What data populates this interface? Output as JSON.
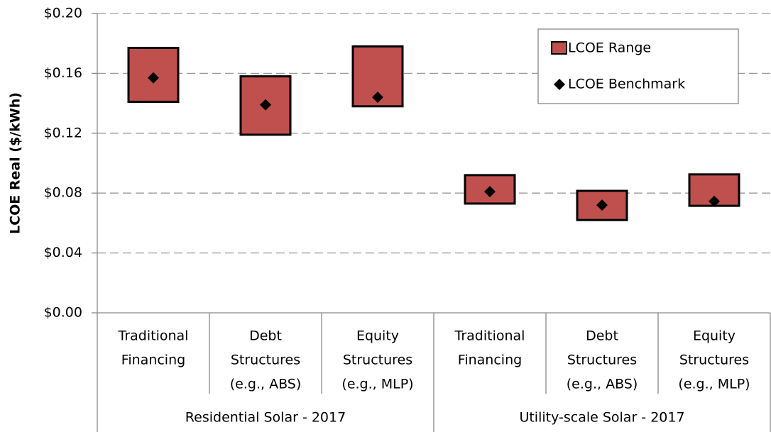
{
  "chart_data": {
    "type": "floating-bar",
    "y_axis_label": "LCOE Real ($/kWh)",
    "categories": [
      [
        "Traditional",
        "Financing"
      ],
      [
        "Debt",
        "Structures",
        "(e.g., ABS)"
      ],
      [
        "Equity",
        "Structures",
        "(e.g., MLP)"
      ],
      [
        "Traditional",
        "Financing"
      ],
      [
        "Debt",
        "Structures",
        "(e.g., ABS)"
      ],
      [
        "Equity",
        "Structures",
        "(e.g., MLP)"
      ]
    ],
    "groups": [
      "Residential Solar - 2017",
      "Utility-scale Solar - 2017"
    ],
    "series": [
      {
        "name": "LCOE Range",
        "color": "#c0504d",
        "low": [
          0.141,
          0.119,
          0.138,
          0.073,
          0.062,
          0.0715
        ],
        "high": [
          0.177,
          0.158,
          0.178,
          0.092,
          0.0815,
          0.0925
        ]
      },
      {
        "name": "LCOE Benchmark",
        "color": "#000000",
        "values": [
          0.157,
          0.139,
          0.144,
          0.081,
          0.072,
          0.0745
        ]
      }
    ],
    "ylim": [
      0,
      0.2
    ],
    "yticks": [
      {
        "value": 0,
        "label": "$0.00"
      },
      {
        "value": 0.04,
        "label": "$0.04"
      },
      {
        "value": 0.08,
        "label": "$0.08"
      },
      {
        "value": 0.12,
        "label": "$0.12"
      },
      {
        "value": 0.16,
        "label": "$0.16"
      },
      {
        "value": 0.2,
        "label": "$0.20"
      }
    ],
    "grid": true,
    "legend": "top-right"
  }
}
